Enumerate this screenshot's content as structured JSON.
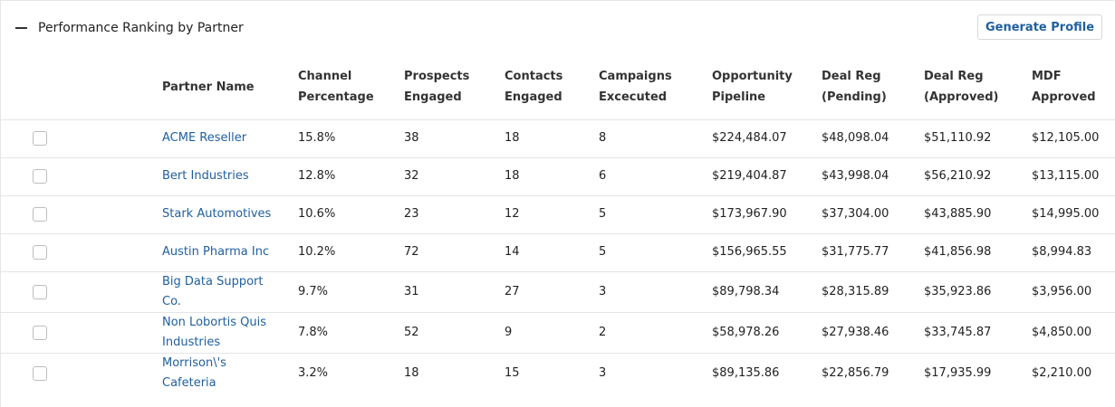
{
  "header": {
    "title": "Performance Ranking by Partner",
    "button": "Generate Profile"
  },
  "table": {
    "columns": [
      "Partner Name",
      "Channel Percentage",
      "Prospects Engaged",
      "Contacts Engaged",
      "Campaigns Excecuted",
      "Opportunity Pipeline",
      "Deal Reg (Pending)",
      "Deal Reg (Approved)",
      "MDF Approved"
    ],
    "rows": [
      [
        "ACME Reseller",
        "15.8%",
        "38",
        "18",
        "8",
        "$224,484.07",
        "$48,098.04",
        "$51,110.92",
        "$12,105.00"
      ],
      [
        "Bert Industries",
        "12.8%",
        "32",
        "18",
        "6",
        "$219,404.87",
        "$43,998.04",
        "$56,210.92",
        "$13,115.00"
      ],
      [
        "Stark Automotives",
        "10.6%",
        "23",
        "12",
        "5",
        "$173,967.90",
        "$37,304.00",
        "$43,885.90",
        "$14,995.00"
      ],
      [
        "Austin Pharma Inc",
        "10.2%",
        "72",
        "14",
        "5",
        "$156,965.55",
        "$31,775.77",
        "$41,856.98",
        "$8,994.83"
      ],
      [
        "Big Data Support Co.",
        "9.7%",
        "31",
        "27",
        "3",
        "$89,798.34",
        "$28,315.89",
        "$35,923.86",
        "$3,956.00"
      ],
      [
        "Non Lobortis Quis Industries",
        "7.8%",
        "52",
        "9",
        "2",
        "$58,978.26",
        "$27,938.46",
        "$33,745.87",
        "$4,850.00"
      ],
      [
        "Morrison\\'s Cafeteria",
        "3.2%",
        "18",
        "15",
        "3",
        "$89,135.86",
        "$22,856.79",
        "$17,935.99",
        "$2,210.00"
      ]
    ]
  }
}
